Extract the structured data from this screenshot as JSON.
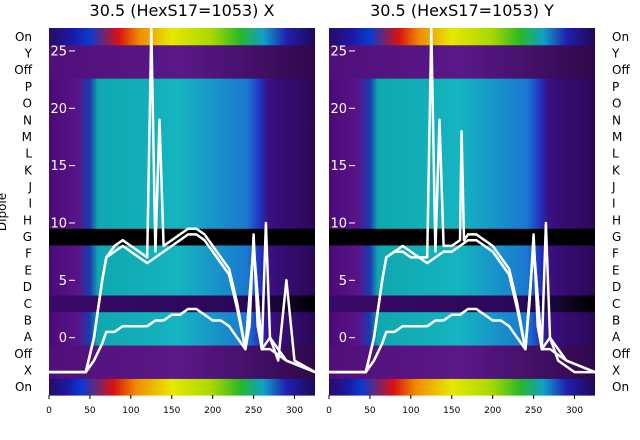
{
  "chart_data": [
    {
      "type": "heatmap",
      "title": "30.5 (HexS17=1053) X",
      "ylabel": "Dipole",
      "xlabel": "",
      "xlim": [
        0,
        325
      ],
      "ylim": [
        -5,
        27
      ],
      "x_ticks": [
        0,
        50,
        100,
        150,
        200,
        250,
        300
      ],
      "y_ticks": [
        0,
        5,
        10,
        15,
        20,
        25
      ],
      "row_labels": [
        "On",
        "X",
        "Off",
        "A",
        "B",
        "C",
        "D",
        "E",
        "F",
        "G",
        "H",
        "I",
        "J",
        "K",
        "L",
        "M",
        "N",
        "O",
        "P",
        "Off",
        "Y",
        "On"
      ],
      "rows": [
        {
          "label": "On",
          "colormap": "spectral",
          "start": 40,
          "peak": 150,
          "end": 290
        },
        {
          "label": "X",
          "colormap": "purple"
        },
        {
          "label": "Off",
          "colormap": "purple"
        },
        {
          "label": "A",
          "colormap": "teal",
          "start": 50,
          "end": 268
        },
        {
          "label": "B",
          "colormap": "teal",
          "start": 50,
          "end": 268
        },
        {
          "label": "C",
          "colormap": "dark"
        },
        {
          "label": "D",
          "colormap": "teal",
          "start": 50,
          "end": 268
        },
        {
          "label": "E",
          "colormap": "teal",
          "start": 50,
          "end": 268
        },
        {
          "label": "F",
          "colormap": "teal",
          "start": 50,
          "end": 268
        },
        {
          "label": "G",
          "colormap": "black"
        },
        {
          "label": "H",
          "colormap": "teal",
          "start": 50,
          "end": 268
        },
        {
          "label": "I",
          "colormap": "teal",
          "start": 50,
          "end": 268
        },
        {
          "label": "J",
          "colormap": "teal",
          "start": 50,
          "end": 268
        },
        {
          "label": "K",
          "colormap": "teal",
          "start": 50,
          "end": 268
        },
        {
          "label": "L",
          "colormap": "teal",
          "start": 50,
          "end": 268
        },
        {
          "label": "M",
          "colormap": "teal",
          "start": 50,
          "end": 268
        },
        {
          "label": "N",
          "colormap": "teal",
          "start": 50,
          "end": 268
        },
        {
          "label": "O",
          "colormap": "teal",
          "start": 50,
          "end": 268
        },
        {
          "label": "P",
          "colormap": "teal",
          "start": 50,
          "end": 268
        },
        {
          "label": "Off",
          "colormap": "purple"
        },
        {
          "label": "Y",
          "colormap": "purple"
        },
        {
          "label": "On",
          "colormap": "spectral",
          "start": 50,
          "peak": 150,
          "end": 290
        }
      ],
      "series": [
        {
          "x": [
            0,
            45,
            55,
            65,
            70,
            80,
            90,
            100,
            110,
            120,
            125,
            130,
            135,
            140,
            150,
            160,
            170,
            180,
            190,
            200,
            210,
            220,
            230,
            240,
            245,
            250,
            255,
            260,
            265,
            270,
            275,
            280,
            290,
            300,
            325
          ],
          "y": [
            -3,
            -3,
            0,
            5,
            7,
            8,
            8.5,
            8,
            7.5,
            7,
            27,
            7.5,
            19,
            8,
            8.5,
            9,
            9.5,
            9.5,
            9,
            8,
            7,
            6,
            3,
            -1,
            1,
            9,
            1,
            -1,
            10,
            0,
            -1,
            -2,
            5,
            -2,
            -3
          ]
        },
        {
          "x": [
            0,
            45,
            55,
            65,
            70,
            80,
            90,
            100,
            110,
            120,
            130,
            140,
            150,
            160,
            170,
            180,
            190,
            200,
            210,
            220,
            230,
            240,
            250,
            260,
            270,
            290,
            325
          ],
          "y": [
            -3,
            -3,
            0,
            5,
            7,
            7.5,
            8,
            7.5,
            7,
            6.5,
            7,
            7.5,
            8,
            8.5,
            9,
            9,
            8.5,
            7.5,
            6.5,
            5.5,
            2.5,
            -1,
            8,
            -1,
            0,
            -2,
            -3
          ]
        },
        {
          "x": [
            0,
            45,
            55,
            65,
            70,
            80,
            90,
            100,
            110,
            120,
            130,
            140,
            150,
            160,
            170,
            180,
            190,
            200,
            210,
            220,
            230,
            240,
            250,
            260,
            270,
            290,
            325
          ],
          "y": [
            -3,
            -3,
            -2,
            -0.5,
            0.5,
            0.5,
            1,
            1,
            1,
            1,
            1.5,
            1.5,
            2,
            2,
            2.5,
            2.5,
            2,
            1.5,
            1.5,
            1,
            0,
            -1,
            8,
            -1,
            -1,
            -2,
            -3
          ]
        }
      ]
    },
    {
      "type": "heatmap",
      "title": "30.5 (HexS17=1053) Y",
      "ylabel": "",
      "xlabel": "",
      "xlim": [
        0,
        325
      ],
      "ylim": [
        -5,
        27
      ],
      "x_ticks": [
        0,
        50,
        100,
        150,
        200,
        250,
        300
      ],
      "y_ticks": [
        0,
        5,
        10,
        15,
        20,
        25
      ],
      "row_labels": [
        "On",
        "X",
        "Off",
        "A",
        "B",
        "C",
        "D",
        "E",
        "F",
        "G",
        "H",
        "I",
        "J",
        "K",
        "L",
        "M",
        "N",
        "O",
        "P",
        "Off",
        "Y",
        "On"
      ],
      "rows": [
        {
          "label": "On",
          "colormap": "spectral",
          "start": 40,
          "peak": 150,
          "end": 290
        },
        {
          "label": "X",
          "colormap": "purple"
        },
        {
          "label": "Off",
          "colormap": "purple"
        },
        {
          "label": "A",
          "colormap": "teal",
          "start": 50,
          "end": 268
        },
        {
          "label": "B",
          "colormap": "teal",
          "start": 50,
          "end": 268
        },
        {
          "label": "C",
          "colormap": "dark"
        },
        {
          "label": "D",
          "colormap": "teal",
          "start": 50,
          "end": 268
        },
        {
          "label": "E",
          "colormap": "teal",
          "start": 50,
          "end": 268
        },
        {
          "label": "F",
          "colormap": "teal",
          "start": 50,
          "end": 268
        },
        {
          "label": "G",
          "colormap": "black"
        },
        {
          "label": "H",
          "colormap": "teal",
          "start": 50,
          "end": 268
        },
        {
          "label": "I",
          "colormap": "teal",
          "start": 50,
          "end": 268
        },
        {
          "label": "J",
          "colormap": "teal",
          "start": 50,
          "end": 268
        },
        {
          "label": "K",
          "colormap": "teal",
          "start": 50,
          "end": 268
        },
        {
          "label": "L",
          "colormap": "teal",
          "start": 50,
          "end": 268
        },
        {
          "label": "M",
          "colormap": "teal",
          "start": 50,
          "end": 268
        },
        {
          "label": "N",
          "colormap": "teal",
          "start": 50,
          "end": 268
        },
        {
          "label": "O",
          "colormap": "teal",
          "start": 50,
          "end": 268
        },
        {
          "label": "P",
          "colormap": "teal",
          "start": 50,
          "end": 268
        },
        {
          "label": "Off",
          "colormap": "purple"
        },
        {
          "label": "Y",
          "colormap": "purple"
        },
        {
          "label": "On",
          "colormap": "spectral",
          "start": 50,
          "peak": 150,
          "end": 290
        }
      ],
      "series": [
        {
          "x": [
            0,
            45,
            55,
            65,
            70,
            80,
            90,
            100,
            110,
            120,
            125,
            130,
            135,
            140,
            150,
            160,
            162,
            165,
            170,
            180,
            190,
            200,
            210,
            220,
            230,
            240,
            245,
            250,
            255,
            260,
            265,
            270,
            280,
            300,
            325
          ],
          "y": [
            -3,
            -3,
            0,
            5,
            7,
            7.5,
            8,
            7.5,
            7,
            7,
            27,
            7.5,
            19,
            8,
            8,
            8.5,
            18,
            8.5,
            9,
            9,
            8.5,
            8,
            7,
            6,
            3,
            -1,
            3,
            9,
            1,
            -1,
            10,
            0,
            -2,
            -3,
            -3
          ]
        },
        {
          "x": [
            0,
            45,
            55,
            65,
            70,
            80,
            90,
            100,
            110,
            120,
            130,
            140,
            150,
            160,
            170,
            180,
            190,
            200,
            210,
            220,
            230,
            240,
            250,
            260,
            270,
            290,
            325
          ],
          "y": [
            -3,
            -3,
            0,
            5,
            7,
            7.5,
            7.5,
            7,
            7,
            6.5,
            7,
            7.5,
            7.5,
            8,
            8.5,
            8.5,
            8,
            7.5,
            6.5,
            5.5,
            2.5,
            -1,
            8,
            -1,
            0,
            -2,
            -3
          ]
        },
        {
          "x": [
            0,
            45,
            55,
            65,
            70,
            80,
            90,
            100,
            110,
            120,
            130,
            140,
            150,
            160,
            170,
            180,
            190,
            200,
            210,
            220,
            230,
            240,
            250,
            260,
            270,
            290,
            325
          ],
          "y": [
            -3,
            -3,
            -2,
            -0.5,
            0.5,
            0.5,
            1,
            1,
            1,
            1,
            1.5,
            1.5,
            2,
            2,
            2.5,
            2.5,
            2,
            1.5,
            1.5,
            1,
            0,
            -1,
            8,
            -1,
            -1,
            -2,
            -3
          ]
        }
      ]
    }
  ]
}
